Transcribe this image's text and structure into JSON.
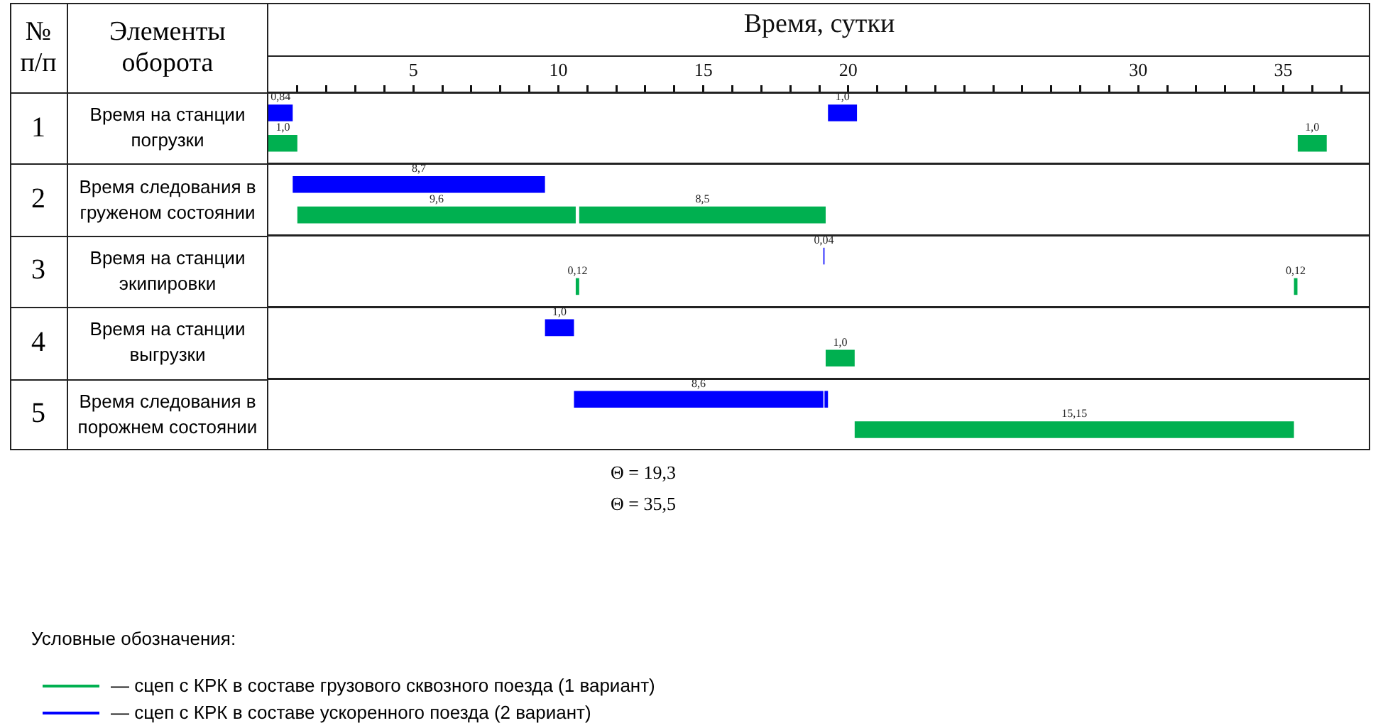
{
  "chart_data": {
    "type": "bar",
    "orientation": "horizontal",
    "xlabel": "Время, сутки",
    "ylabel": "Элементы оборота",
    "legend_title": "Условные обозначения:",
    "categories": [
      "Время на станции погрузки",
      "Время следования в груженом состоянии",
      "Время на станции экипировки",
      "Время на станции выгрузки",
      "Время следования в порожнем состоянии"
    ],
    "series": [
      {
        "name": "— сцеп с КРК в составе грузового сквозного поезда (1 вариант)",
        "color": "#00b050",
        "values": [
          1.0,
          9.6,
          0.12,
          1.0,
          15.15
        ],
        "base": [
          0,
          1.0,
          10.6,
          19.22,
          20.22
        ],
        "value_labels": [
          "1,0",
          "9,6",
          "0,12",
          "1,0",
          "15,15"
        ]
      },
      {
        "color": "#00b050",
        "values": [
          1.0,
          8.5,
          0.12,
          null,
          null
        ],
        "base": [
          35.5,
          10.72,
          35.37,
          null,
          null
        ],
        "value_labels": [
          "1,0",
          "8,5",
          "0,12",
          null,
          null
        ]
      },
      {
        "name": "— сцеп с КРК в составе ускоренного поезда (2 вариант)",
        "color": "#0000ff",
        "values": [
          0.84,
          8.7,
          0.04,
          1.0,
          8.6
        ],
        "base": [
          0,
          0.84,
          19.14,
          9.54,
          10.54
        ],
        "value_labels": [
          "0,84",
          "8,7",
          "0,04",
          "1,0",
          "8,6"
        ]
      },
      {
        "color": "#0000ff",
        "values": [
          1.0,
          null,
          null,
          null,
          0.12
        ],
        "base": [
          19.3,
          null,
          null,
          null,
          19.18
        ],
        "value_labels": [
          "1,0",
          null,
          null,
          null,
          null
        ]
      }
    ],
    "xlim": [
      0,
      38
    ],
    "xticks": [
      {
        "value": 1,
        "label": null
      },
      {
        "value": 2,
        "label": null
      },
      {
        "value": 3,
        "label": null
      },
      {
        "value": 4,
        "label": null
      },
      5,
      {
        "value": 6,
        "label": null
      },
      {
        "value": 7,
        "label": null
      },
      {
        "value": 8,
        "label": null
      },
      {
        "value": 9,
        "label": null
      },
      10,
      {
        "value": 11,
        "label": null
      },
      {
        "value": 12,
        "label": null
      },
      {
        "value": 13,
        "label": null
      },
      {
        "value": 14,
        "label": null
      },
      15,
      {
        "value": 16,
        "label": null
      },
      {
        "value": 17,
        "label": null
      },
      {
        "value": 18,
        "label": null
      },
      {
        "value": 19,
        "label": null
      },
      20,
      {
        "value": 21,
        "label": null
      },
      {
        "value": 22,
        "label": null
      },
      {
        "value": 23,
        "label": null
      },
      {
        "value": 24,
        "label": null
      },
      {
        "value": 25,
        "label": null
      },
      {
        "value": 26,
        "label": null
      },
      {
        "value": 27,
        "label": null
      },
      {
        "value": 28,
        "label": null
      },
      {
        "value": 29,
        "label": null
      },
      30,
      {
        "value": 31,
        "label": null
      },
      {
        "value": 32,
        "label": null
      },
      {
        "value": 33,
        "label": null
      },
      {
        "value": 34,
        "label": null
      },
      35,
      {
        "value": 36,
        "label": null
      },
      {
        "value": 37,
        "label": null
      }
    ],
    "grid": "y",
    "legend": "bottom left",
    "annotations": [
      "№ п/п",
      "1",
      "2",
      "3",
      "4",
      "5",
      "Θ = 19,3",
      "Θ = 35,5"
    ]
  }
}
